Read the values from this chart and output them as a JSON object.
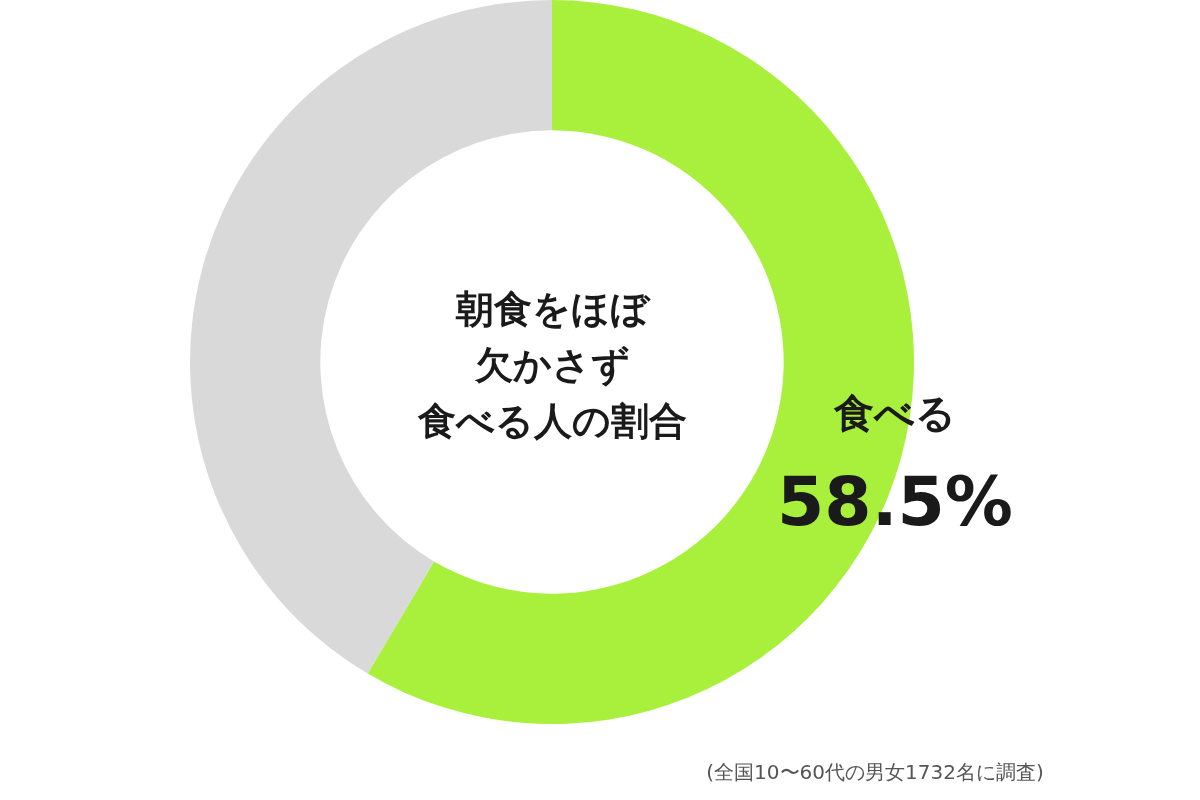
{
  "chart_data": {
    "type": "donut",
    "title": "朝食をほぼ欠かさず食べる人の割合",
    "categories": [
      "食べる",
      null
    ],
    "values": [
      58.5,
      41.5
    ],
    "colors": [
      "#a8f03c",
      "#d9d9d9"
    ],
    "value_labels": [
      "58.5%",
      null
    ],
    "annotations": [
      "(全国10〜60代の男女1732名に調査)"
    ]
  }
}
